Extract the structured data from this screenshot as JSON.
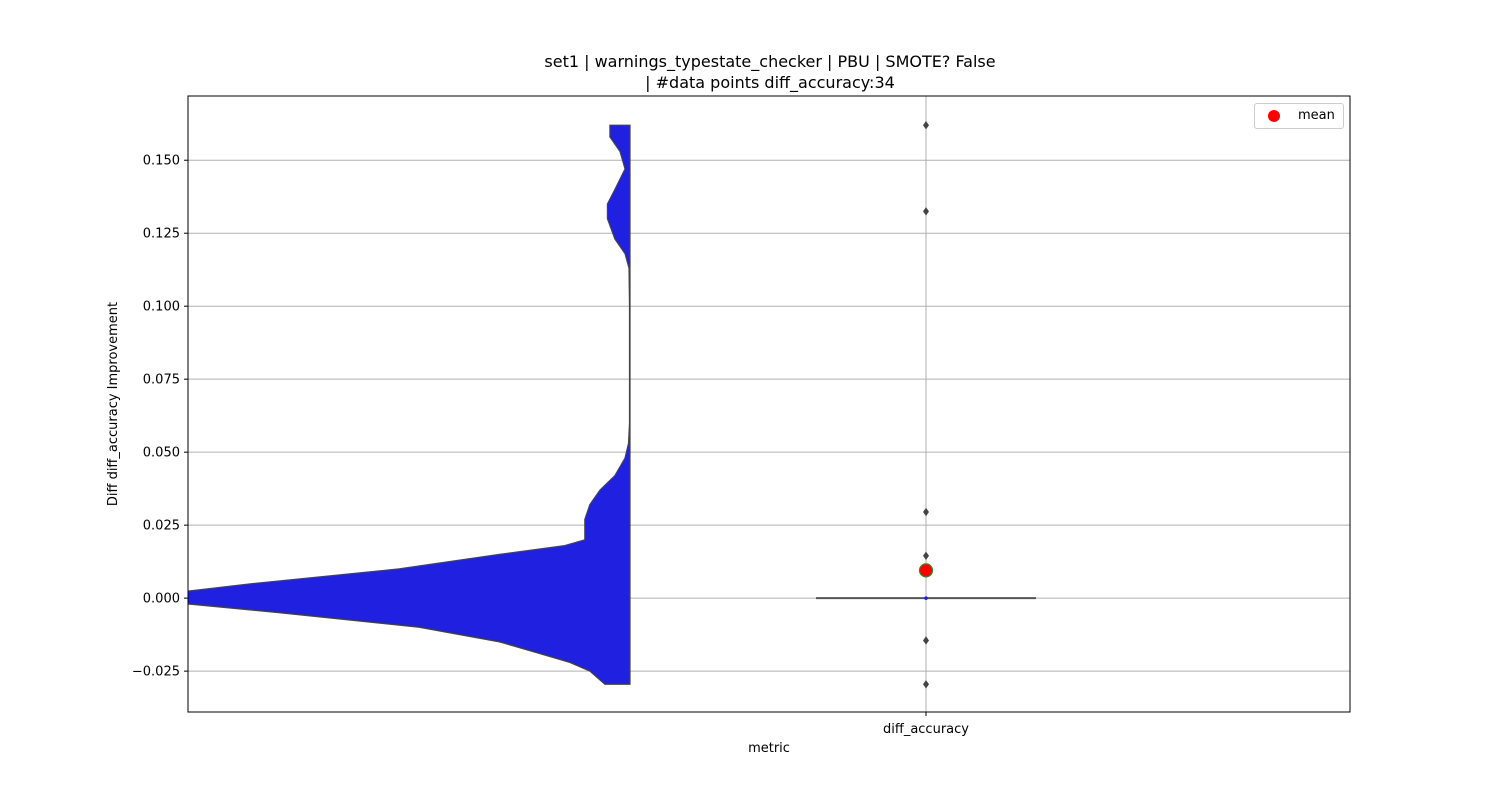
{
  "chart_data": {
    "type": "violin",
    "title_line1": "set1 | warnings_typestate_checker | PBU | SMOTE? False",
    "title_line2": "| #data points diff_accuracy:34",
    "xlabel": "metric",
    "ylabel": "Diff diff_accuracy Improvement",
    "categories": [
      "diff_accuracy"
    ],
    "ylim": [
      -0.039,
      0.172
    ],
    "yticks": [
      -0.025,
      0.0,
      0.025,
      0.05,
      0.075,
      0.1,
      0.125,
      0.15
    ],
    "ytick_labels": [
      "−0.025",
      "0.000",
      "0.025",
      "0.050",
      "0.075",
      "0.100",
      "0.125",
      "0.150"
    ],
    "grid": true,
    "violin": {
      "color": "#2020e0",
      "edge_color": "#444444",
      "density": [
        {
          "y": -0.0295,
          "w": 0.05
        },
        {
          "y": -0.028,
          "w": 0.06
        },
        {
          "y": -0.025,
          "w": 0.08
        },
        {
          "y": -0.022,
          "w": 0.12
        },
        {
          "y": -0.019,
          "w": 0.18
        },
        {
          "y": -0.015,
          "w": 0.26
        },
        {
          "y": -0.01,
          "w": 0.42
        },
        {
          "y": -0.005,
          "w": 0.7
        },
        {
          "y": -0.002,
          "w": 0.88
        },
        {
          "y": 0.0,
          "w": 1.0
        },
        {
          "y": 0.002,
          "w": 0.9
        },
        {
          "y": 0.005,
          "w": 0.75
        },
        {
          "y": 0.01,
          "w": 0.46
        },
        {
          "y": 0.015,
          "w": 0.26
        },
        {
          "y": 0.018,
          "w": 0.13
        },
        {
          "y": 0.02,
          "w": 0.09
        },
        {
          "y": 0.023,
          "w": 0.09
        },
        {
          "y": 0.027,
          "w": 0.09
        },
        {
          "y": 0.032,
          "w": 0.08
        },
        {
          "y": 0.037,
          "w": 0.06
        },
        {
          "y": 0.042,
          "w": 0.03
        },
        {
          "y": 0.048,
          "w": 0.01
        },
        {
          "y": 0.053,
          "w": 0.003
        },
        {
          "y": 0.06,
          "w": 0.001
        },
        {
          "y": 0.1,
          "w": 0.001
        },
        {
          "y": 0.113,
          "w": 0.002
        },
        {
          "y": 0.118,
          "w": 0.01
        },
        {
          "y": 0.123,
          "w": 0.03
        },
        {
          "y": 0.13,
          "w": 0.045
        },
        {
          "y": 0.135,
          "w": 0.045
        },
        {
          "y": 0.14,
          "w": 0.03
        },
        {
          "y": 0.147,
          "w": 0.01
        },
        {
          "y": 0.153,
          "w": 0.02
        },
        {
          "y": 0.158,
          "w": 0.04
        },
        {
          "y": 0.162,
          "w": 0.04
        }
      ]
    },
    "box": {
      "median": 0.0,
      "q1": 0.0,
      "q3": 0.0,
      "whisker_low": 0.0,
      "whisker_high": 0.0,
      "outliers": [
        0.162,
        0.1325,
        0.0295,
        0.0145,
        -0.0145,
        -0.0295
      ],
      "mean": 0.0095
    },
    "legend": {
      "label": "mean",
      "color": "#ff0000",
      "placement": "top-right"
    }
  }
}
